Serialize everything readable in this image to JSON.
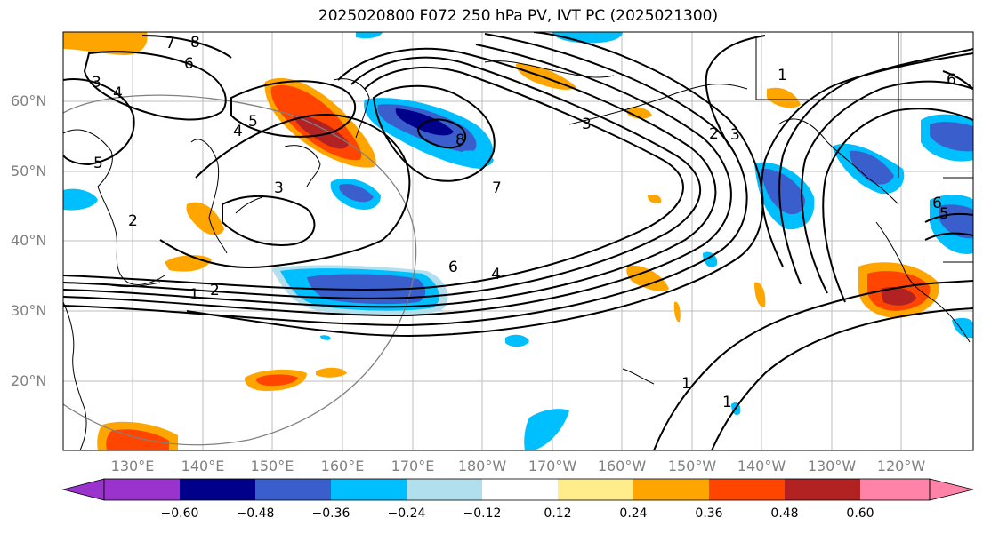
{
  "title": "2025020800 F072 250 hPa PV, IVT PC (2025021300)",
  "lat_labels": [
    "60°N",
    "50°N",
    "40°N",
    "30°N",
    "20°N"
  ],
  "lon_labels": [
    "130°E",
    "140°E",
    "150°E",
    "160°E",
    "170°E",
    "180°W",
    "170°W",
    "160°W",
    "150°W",
    "140°W",
    "130°W",
    "120°W"
  ],
  "colorbar": {
    "colors": [
      "#9a32cd",
      "#00008b",
      "#3a5fcd",
      "#00bfff",
      "#b2dfee",
      "#ffffff",
      "#ffec8b",
      "#ffa500",
      "#ff4500",
      "#b22222",
      "#ff83a8"
    ],
    "tick_labels": [
      "−0.60",
      "−0.48",
      "−0.36",
      "−0.24",
      "−0.12",
      "0.12",
      "0.24",
      "0.36",
      "0.48",
      "0.60"
    ]
  },
  "contour_labels": [
    "7",
    "8",
    "6",
    "3",
    "4",
    "5",
    "4",
    "5",
    "3",
    "2",
    "1",
    "2",
    "6",
    "4",
    "8",
    "7",
    "3",
    "2",
    "3",
    "1",
    "6",
    "6",
    "5",
    "1",
    "1"
  ]
}
